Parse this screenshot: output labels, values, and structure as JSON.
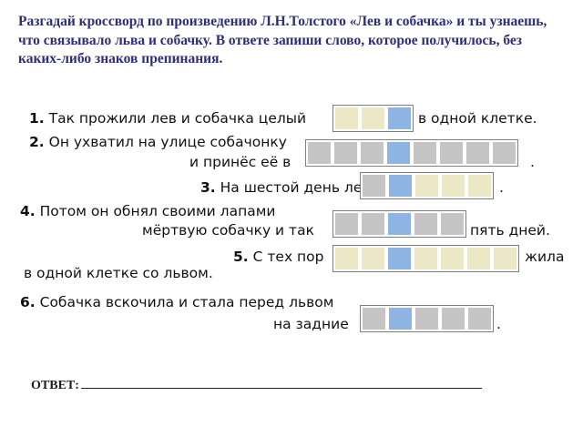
{
  "task": "Разгадай кроссворд по произведению Л.Н.Толстого «Лев и собачка» и ты узнаешь, что связывало льва и собачку. В ответе запиши слово, которое получилось, без каких-либо знаков препинания.",
  "clues": [
    {
      "num": "1.",
      "text_before": "Так прожили лев и собачка целый",
      "text_after": "в одной клетке."
    },
    {
      "num": "2.",
      "line1": "Он ухватил на улице собачонку",
      "line2": "и принёс её в",
      "text_after": "."
    },
    {
      "num": "3.",
      "text_before": "На шестой день лев",
      "text_after": "."
    },
    {
      "num": "4.",
      "line1": "Потом он обнял своими лапами",
      "line2": "мёртвую собачку и так",
      "text_after": "пять дней."
    },
    {
      "num": "5.",
      "text_before": "С тех пор",
      "text_after": "жила",
      "line2": "в одной клетке со львом."
    },
    {
      "num": "6.",
      "line1": "Собачка вскочила и стала перед львом",
      "line2": "на задние",
      "text_after": "."
    }
  ],
  "answer_label": "ОТВЕТ:",
  "colors": {
    "task_text": "#2e2e78",
    "cell_gray": "#c5c5c5",
    "cell_yellow": "#ece8c6",
    "cell_blue": "#8db4e2"
  }
}
